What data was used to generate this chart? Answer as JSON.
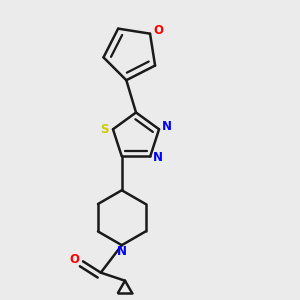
{
  "background_color": "#ebebeb",
  "bond_color": "#1a1a1a",
  "nitrogen_color": "#0000ff",
  "oxygen_color": "#ff0000",
  "sulfur_color": "#cccc00",
  "line_width": 1.8,
  "figsize": [
    3.0,
    3.0
  ],
  "dpi": 100,
  "xlim": [
    0.15,
    0.85
  ],
  "ylim": [
    0.05,
    0.97
  ]
}
